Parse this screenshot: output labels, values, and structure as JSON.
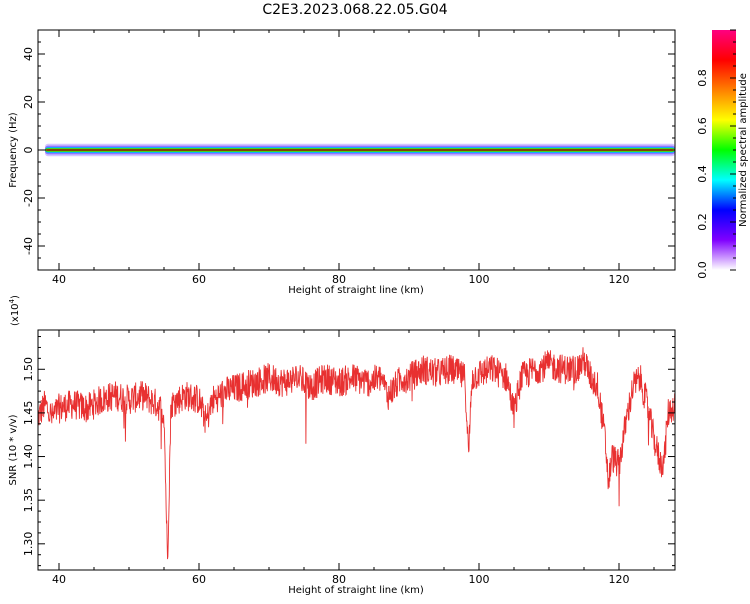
{
  "chart_data": [
    {
      "type": "heatmap",
      "title": "C2E3.2023.068.22.05.G04",
      "xlabel": "Height of straight line (km)",
      "ylabel": "Frequency (Hz)",
      "xlim": [
        37,
        128
      ],
      "ylim": [
        -50,
        50
      ],
      "xticks": [
        40,
        60,
        80,
        100,
        120
      ],
      "yticks": [
        -40,
        -20,
        0,
        20,
        40
      ],
      "xtick_labels": [
        "40",
        "60",
        "80",
        "100",
        "120"
      ],
      "ytick_labels": [
        "-40",
        "-20",
        "0",
        "20",
        "40"
      ],
      "signal": {
        "x_start": 38,
        "x_end": 128,
        "frequency": 0,
        "spread_hz": 2
      },
      "colorbar": {
        "label": "Normalized spectral amplitude",
        "range": [
          0,
          1
        ],
        "ticks": [
          0.0,
          0.2,
          0.4,
          0.6,
          0.8
        ],
        "tick_labels": [
          "0.0",
          "0.2",
          "0.4",
          "0.6",
          "0.8"
        ],
        "colormap": [
          "#ffffff",
          "#8000ff",
          "#0000ff",
          "#00ffff",
          "#00ff00",
          "#ffff00",
          "#ff8000",
          "#ff0000",
          "#ff0080"
        ]
      },
      "grid": false
    },
    {
      "type": "line",
      "xlabel": "Height of straight line (km)",
      "ylabel": "SNR (10 * v/v)",
      "exponent_label": "(x10",
      "exponent_sup": "4",
      "exponent_close": ")",
      "xlim": [
        37,
        128
      ],
      "ylim": [
        1.27,
        1.545
      ],
      "xticks": [
        40,
        60,
        80,
        100,
        120
      ],
      "yticks": [
        1.3,
        1.35,
        1.4,
        1.45,
        1.5
      ],
      "xtick_labels": [
        "40",
        "60",
        "80",
        "100",
        "120"
      ],
      "ytick_labels": [
        "1.30",
        "1.35",
        "1.40",
        "1.45",
        "1.50"
      ],
      "line_color": "#e83030",
      "series": [
        {
          "x": [
            37,
            38,
            39,
            40,
            42,
            44,
            46,
            48,
            50,
            52,
            54,
            55,
            55.5,
            56,
            57,
            58,
            60,
            61,
            62,
            63,
            64,
            66,
            68,
            70,
            72,
            74,
            76,
            78,
            80,
            82,
            84,
            86,
            87,
            88,
            89,
            90,
            92,
            94,
            96,
            98,
            98.5,
            99,
            100,
            102,
            104,
            105,
            106,
            108,
            110,
            112,
            114,
            115,
            116,
            117,
            118,
            118.5,
            119,
            120,
            121,
            122,
            123,
            124,
            125,
            126,
            126.5,
            127,
            128
          ],
          "y": [
            1.445,
            1.46,
            1.445,
            1.455,
            1.46,
            1.455,
            1.465,
            1.47,
            1.465,
            1.47,
            1.46,
            1.45,
            1.28,
            1.46,
            1.465,
            1.47,
            1.465,
            1.44,
            1.465,
            1.47,
            1.475,
            1.48,
            1.485,
            1.49,
            1.485,
            1.49,
            1.48,
            1.49,
            1.485,
            1.49,
            1.485,
            1.49,
            1.47,
            1.48,
            1.49,
            1.49,
            1.5,
            1.495,
            1.5,
            1.49,
            1.4,
            1.49,
            1.495,
            1.5,
            1.49,
            1.45,
            1.49,
            1.5,
            1.505,
            1.5,
            1.5,
            1.51,
            1.49,
            1.48,
            1.42,
            1.37,
            1.4,
            1.39,
            1.44,
            1.48,
            1.49,
            1.46,
            1.42,
            1.39,
            1.4,
            1.45,
            1.46
          ]
        }
      ]
    }
  ]
}
